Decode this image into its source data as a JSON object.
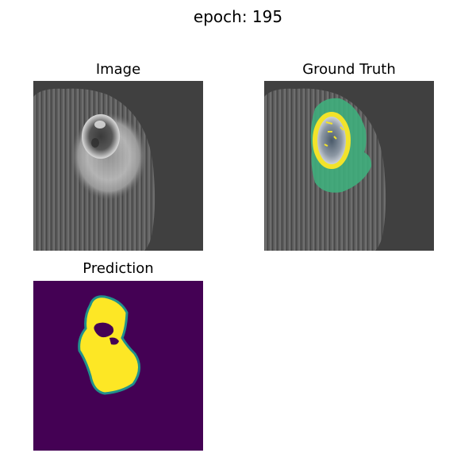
{
  "figure": {
    "title": "epoch: 195"
  },
  "panels": {
    "image": {
      "title": "Image"
    },
    "ground_truth": {
      "title": "Ground Truth"
    },
    "prediction": {
      "title": "Prediction"
    }
  },
  "colors": {
    "background_gray": "#3f3f3f",
    "brain_gray": "#5a5a5a",
    "lesion_light": "#c8c8c8",
    "overlay_green": "#3fae7c",
    "overlay_yellow": "#f2e32a",
    "prediction_bg": "#440154",
    "prediction_fg": "#fde725",
    "prediction_edge": "#21918c"
  }
}
